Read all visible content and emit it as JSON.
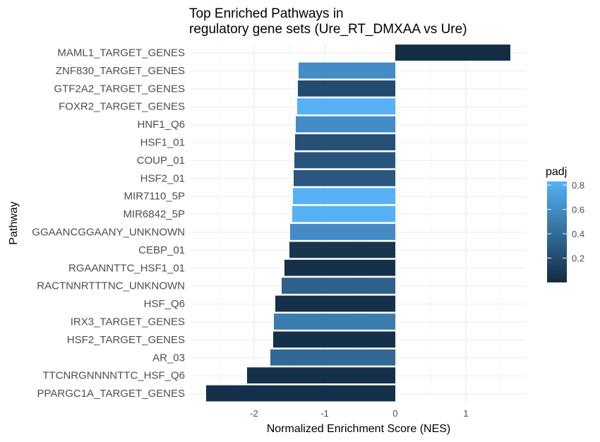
{
  "chart_data": {
    "type": "bar",
    "orientation": "horizontal",
    "title_line1": "Top Enriched Pathways in",
    "title_line2": "regulatory gene sets (Ure_RT_DMXAA vs Ure)",
    "xlabel": "Normalized Enrichment Score (NES)",
    "ylabel": "Pathway",
    "xlim": [
      -2.68,
      1.63
    ],
    "xticks": [
      -2,
      -1,
      0,
      1
    ],
    "x_tick_labels": [
      "-2",
      "-1",
      "0",
      "1"
    ],
    "grid": true,
    "legend": {
      "title": "padj",
      "position": "right",
      "min": 0.0,
      "max": 0.83,
      "ticks": [
        0.2,
        0.4,
        0.6,
        0.8
      ],
      "tick_labels": [
        "0.2",
        "0.4",
        "0.6",
        "0.8"
      ],
      "color_low": "#132B43",
      "color_high": "#56B1F7"
    },
    "categories": [
      "MAML1_TARGET_GENES",
      "ZNF830_TARGET_GENES",
      "GTF2A2_TARGET_GENES",
      "FOXR2_TARGET_GENES",
      "HNF1_Q6",
      "HSF1_01",
      "COUP_01",
      "HSF2_01",
      "MIR7110_5P",
      "MIR6842_5P",
      "GGAANCGGAANY_UNKNOWN",
      "CEBP_01",
      "RGAANNTTC_HSF1_01",
      "RACTNNRTTTNC_UNKNOWN",
      "HSF_Q6",
      "IRX3_TARGET_GENES",
      "HSF2_TARGET_GENES",
      "AR_03",
      "TTCNRGNNNNTTC_HSF_Q6",
      "PPARGC1A_TARGET_GENES"
    ],
    "values": [
      1.63,
      -1.37,
      -1.38,
      -1.39,
      -1.41,
      -1.42,
      -1.43,
      -1.44,
      -1.45,
      -1.46,
      -1.49,
      -1.5,
      -1.57,
      -1.61,
      -1.7,
      -1.72,
      -1.73,
      -1.77,
      -2.1,
      -2.68
    ],
    "padj": [
      0.01,
      0.6,
      0.2,
      0.83,
      0.6,
      0.23,
      0.26,
      0.27,
      0.83,
      0.83,
      0.6,
      0.06,
      0.03,
      0.33,
      0.03,
      0.5,
      0.03,
      0.38,
      0.03,
      0.03
    ]
  }
}
